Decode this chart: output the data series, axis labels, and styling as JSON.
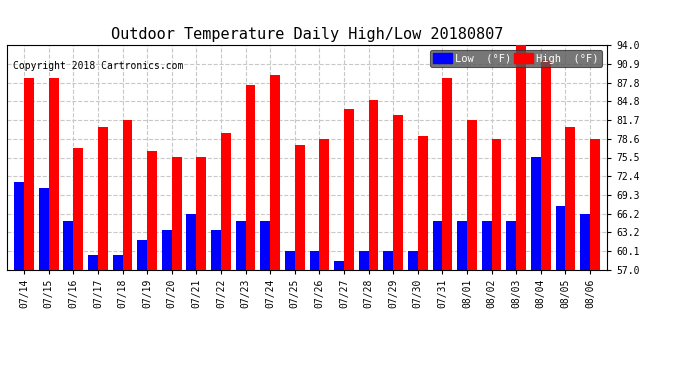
{
  "title": "Outdoor Temperature Daily High/Low 20180807",
  "copyright": "Copyright 2018 Cartronics.com",
  "legend_low": "Low  (°F)",
  "legend_high": "High  (°F)",
  "categories": [
    "07/14",
    "07/15",
    "07/16",
    "07/17",
    "07/18",
    "07/19",
    "07/20",
    "07/21",
    "07/22",
    "07/23",
    "07/24",
    "07/25",
    "07/26",
    "07/27",
    "07/28",
    "07/29",
    "07/30",
    "07/31",
    "08/01",
    "08/02",
    "08/03",
    "08/04",
    "08/05",
    "08/06"
  ],
  "high_values": [
    88.5,
    88.5,
    77.0,
    80.5,
    81.7,
    76.5,
    75.5,
    75.5,
    79.5,
    87.5,
    89.0,
    77.5,
    78.5,
    83.5,
    85.0,
    82.5,
    79.0,
    88.5,
    81.7,
    78.5,
    94.0,
    91.5,
    80.5,
    78.5
  ],
  "low_values": [
    71.5,
    70.5,
    65.0,
    59.5,
    59.5,
    62.0,
    63.5,
    66.2,
    63.5,
    65.0,
    65.0,
    60.1,
    60.1,
    58.5,
    60.1,
    60.1,
    60.1,
    65.0,
    65.0,
    65.0,
    65.0,
    75.5,
    67.5,
    66.2
  ],
  "ylim_min": 57.0,
  "ylim_max": 94.0,
  "yticks": [
    57.0,
    60.1,
    63.2,
    66.2,
    69.3,
    72.4,
    75.5,
    78.6,
    81.7,
    84.8,
    87.8,
    90.9,
    94.0
  ],
  "high_color": "#FF0000",
  "low_color": "#0000FF",
  "background_color": "#FFFFFF",
  "grid_color": "#C8C8C8",
  "bar_width": 0.4,
  "title_fontsize": 11,
  "tick_fontsize": 7,
  "copyright_fontsize": 7
}
